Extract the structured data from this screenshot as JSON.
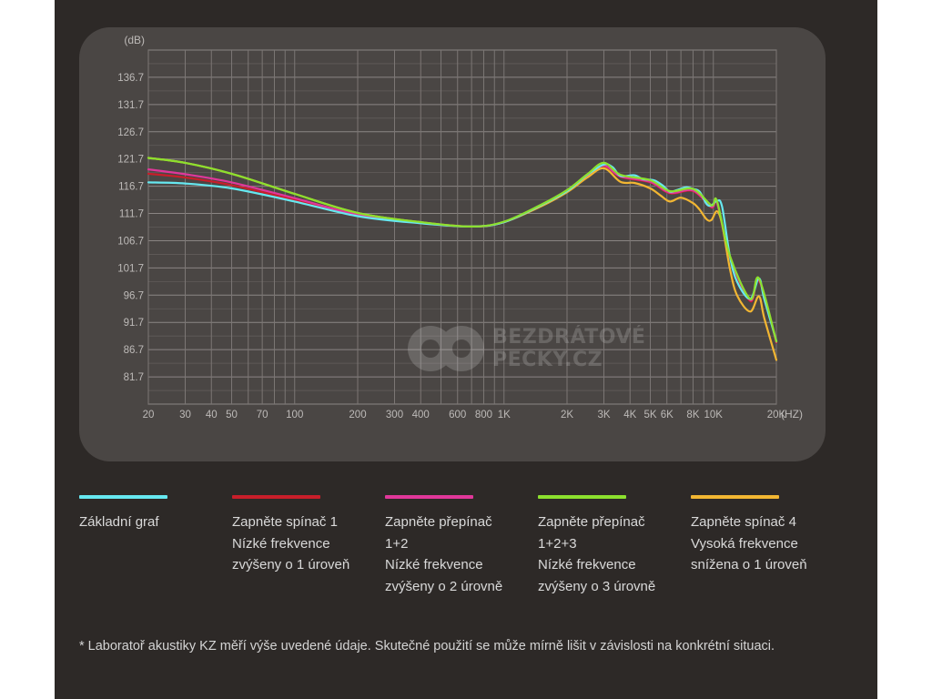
{
  "chart_data": {
    "type": "line",
    "ylabel": "(dB)",
    "xlabel": "(HZ)",
    "x_scale": "log",
    "xlim": [
      20,
      20000
    ],
    "ylim": [
      76.7,
      141.7
    ],
    "grid": true,
    "y_ticks": [
      81.7,
      86.7,
      91.7,
      96.7,
      101.7,
      106.7,
      111.7,
      116.7,
      121.7,
      126.7,
      131.7,
      136.7
    ],
    "x_ticks": [
      {
        "value": 20,
        "label": "20"
      },
      {
        "value": 30,
        "label": "30"
      },
      {
        "value": 40,
        "label": "40"
      },
      {
        "value": 50,
        "label": "50"
      },
      {
        "value": 70,
        "label": "70"
      },
      {
        "value": 100,
        "label": "100"
      },
      {
        "value": 200,
        "label": "200"
      },
      {
        "value": 300,
        "label": "300"
      },
      {
        "value": 400,
        "label": "400"
      },
      {
        "value": 600,
        "label": "600"
      },
      {
        "value": 800,
        "label": "800"
      },
      {
        "value": 1000,
        "label": "1K"
      },
      {
        "value": 2000,
        "label": "2K"
      },
      {
        "value": 3000,
        "label": "3K"
      },
      {
        "value": 4000,
        "label": "4K"
      },
      {
        "value": 5000,
        "label": "5K"
      },
      {
        "value": 6000,
        "label": "6K"
      },
      {
        "value": 8000,
        "label": "8K"
      },
      {
        "value": 10000,
        "label": "10K"
      },
      {
        "value": 20000,
        "label": "20K"
      }
    ],
    "series": [
      {
        "id": "base",
        "color": "#66e8f0",
        "points": [
          [
            20,
            117.4
          ],
          [
            30,
            117.2
          ],
          [
            50,
            116.3
          ],
          [
            100,
            113.9
          ],
          [
            200,
            111.2
          ],
          [
            400,
            109.9
          ],
          [
            700,
            109.3
          ],
          [
            1000,
            110.1
          ],
          [
            1500,
            113.2
          ],
          [
            2000,
            115.8
          ],
          [
            2500,
            118.8
          ],
          [
            3000,
            120.7
          ],
          [
            3300,
            120.2
          ],
          [
            3600,
            118.6
          ],
          [
            4200,
            118.7
          ],
          [
            4600,
            118.0
          ],
          [
            5200,
            117.8
          ],
          [
            5700,
            116.9
          ],
          [
            6200,
            115.7
          ],
          [
            6700,
            116.0
          ],
          [
            7400,
            116.5
          ],
          [
            8000,
            116.2
          ],
          [
            8600,
            115.7
          ],
          [
            9300,
            113.4
          ],
          [
            9800,
            113.2
          ],
          [
            10400,
            114.0
          ],
          [
            11000,
            113.0
          ],
          [
            12000,
            103.8
          ],
          [
            13000,
            99.1
          ],
          [
            15000,
            96.0
          ],
          [
            16500,
            99.8
          ],
          [
            17500,
            96.0
          ],
          [
            20000,
            88.3
          ]
        ]
      },
      {
        "id": "switch1",
        "color": "#c81e2a",
        "points": [
          [
            20,
            119.0
          ],
          [
            30,
            118.3
          ],
          [
            50,
            116.9
          ],
          [
            100,
            114.2
          ],
          [
            200,
            111.3
          ],
          [
            400,
            109.9
          ],
          [
            700,
            109.3
          ],
          [
            1000,
            110.1
          ],
          [
            1500,
            113.2
          ],
          [
            2000,
            115.8
          ],
          [
            2500,
            118.6
          ],
          [
            3000,
            120.4
          ],
          [
            3600,
            118.4
          ],
          [
            5000,
            117.4
          ],
          [
            6200,
            115.4
          ],
          [
            8000,
            115.8
          ],
          [
            9800,
            112.8
          ],
          [
            10400,
            113.6
          ],
          [
            12000,
            103.6
          ],
          [
            15000,
            95.6
          ],
          [
            16500,
            99.4
          ],
          [
            20000,
            88.0
          ]
        ]
      },
      {
        "id": "switch12",
        "color": "#e0379a",
        "points": [
          [
            20,
            119.8
          ],
          [
            30,
            118.9
          ],
          [
            50,
            117.4
          ],
          [
            100,
            114.5
          ],
          [
            200,
            111.5
          ],
          [
            400,
            110.0
          ],
          [
            700,
            109.3
          ],
          [
            1000,
            110.1
          ],
          [
            1500,
            113.2
          ],
          [
            2000,
            115.8
          ],
          [
            2500,
            118.7
          ],
          [
            3000,
            120.5
          ],
          [
            3600,
            118.5
          ],
          [
            5000,
            117.5
          ],
          [
            6200,
            115.5
          ],
          [
            8000,
            115.9
          ],
          [
            9800,
            112.9
          ],
          [
            10400,
            113.7
          ],
          [
            12000,
            103.7
          ],
          [
            15000,
            95.8
          ],
          [
            16500,
            99.6
          ],
          [
            20000,
            88.1
          ]
        ]
      },
      {
        "id": "switch123",
        "color": "#8ce02e",
        "points": [
          [
            20,
            121.9
          ],
          [
            30,
            121.0
          ],
          [
            50,
            119.0
          ],
          [
            100,
            115.3
          ],
          [
            200,
            111.8
          ],
          [
            400,
            110.1
          ],
          [
            700,
            109.3
          ],
          [
            1000,
            110.2
          ],
          [
            1500,
            113.3
          ],
          [
            2000,
            116.0
          ],
          [
            2500,
            118.9
          ],
          [
            3000,
            121.0
          ],
          [
            3600,
            118.8
          ],
          [
            5000,
            117.8
          ],
          [
            6200,
            115.8
          ],
          [
            8000,
            116.2
          ],
          [
            9800,
            113.2
          ],
          [
            10400,
            114.0
          ],
          [
            12000,
            103.9
          ],
          [
            15000,
            96.0
          ],
          [
            16500,
            99.8
          ],
          [
            20000,
            88.2
          ]
        ]
      },
      {
        "id": "switch4",
        "color": "#f2b632",
        "points": [
          [
            20,
            121.9
          ],
          [
            30,
            121.0
          ],
          [
            50,
            119.0
          ],
          [
            100,
            115.3
          ],
          [
            200,
            111.8
          ],
          [
            400,
            110.1
          ],
          [
            700,
            109.3
          ],
          [
            1000,
            110.1
          ],
          [
            1500,
            113.0
          ],
          [
            2000,
            115.6
          ],
          [
            2500,
            118.3
          ],
          [
            3000,
            120.0
          ],
          [
            3600,
            117.5
          ],
          [
            4200,
            117.3
          ],
          [
            5000,
            116.3
          ],
          [
            5600,
            115.0
          ],
          [
            6200,
            113.9
          ],
          [
            7000,
            114.6
          ],
          [
            8000,
            113.6
          ],
          [
            8600,
            112.4
          ],
          [
            9300,
            110.6
          ],
          [
            9800,
            110.5
          ],
          [
            10400,
            112.1
          ],
          [
            11000,
            109.8
          ],
          [
            12000,
            101.5
          ],
          [
            13000,
            96.6
          ],
          [
            15000,
            93.7
          ],
          [
            16500,
            96.5
          ],
          [
            17500,
            92.5
          ],
          [
            20000,
            84.8
          ]
        ]
      }
    ]
  },
  "watermark": {
    "line1": "BEZDRÁTOVÉ",
    "line2": "PECKY.CZ"
  },
  "legend": [
    {
      "color": "#66e8f0",
      "lines": [
        "Základní graf"
      ]
    },
    {
      "color": "#c81e2a",
      "lines": [
        "Zapněte spínač 1",
        "Nízké frekvence",
        "zvýšeny o 1 úroveň"
      ]
    },
    {
      "color": "#e0379a",
      "lines": [
        "Zapněte přepínač",
        "1+2",
        "Nízké frekvence",
        "zvýšeny o 2 úrovně"
      ]
    },
    {
      "color": "#8ce02e",
      "lines": [
        "Zapněte přepínač",
        "1+2+3",
        "Nízké frekvence",
        "zvýšeny o 3 úrovně"
      ]
    },
    {
      "color": "#f2b632",
      "lines": [
        "Zapněte spínač 4",
        "Vysoká frekvence",
        "snížena o 1 úroveň"
      ]
    }
  ],
  "footnote": "* Laboratoř akustiky KZ měří výše uvedené údaje. Skutečné použití se může mírně lišit v závislosti na konkrétní situaci."
}
